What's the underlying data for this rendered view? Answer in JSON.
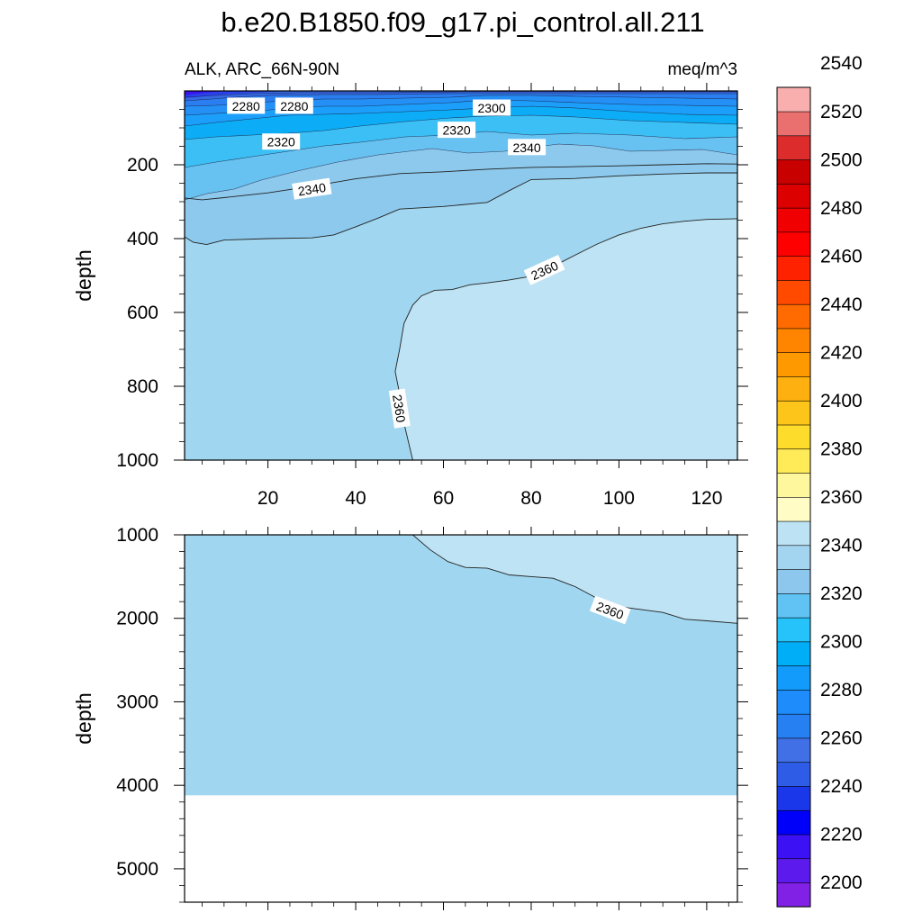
{
  "title": "b.e20.B1850.f09_g17.pi_control.all.211",
  "subtitle_left": "ALK, ARC_66N-90N",
  "subtitle_right": "meq/m^3",
  "chart_data": [
    {
      "type": "contour",
      "panel": "upper",
      "ylabel": "depth",
      "xlim": [
        1,
        127
      ],
      "ylim": [
        1000,
        0
      ],
      "x_ticks": [
        20,
        40,
        60,
        80,
        100,
        120
      ],
      "y_ticks": [
        200,
        400,
        600,
        800,
        1000
      ],
      "contours": [
        {
          "level": 2340,
          "points": [
            [
              1,
              290
            ],
            [
              5,
              295
            ],
            [
              10,
              289
            ],
            [
              20,
              276
            ],
            [
              30,
              258
            ],
            [
              40,
              238
            ],
            [
              50,
              224
            ],
            [
              60,
              219
            ],
            [
              70,
              212
            ],
            [
              80,
              207
            ],
            [
              90,
              205
            ],
            [
              100,
              203
            ],
            [
              110,
              200
            ],
            [
              120,
              197
            ],
            [
              127,
              198
            ]
          ]
        },
        {
          "level": 2350,
          "points": [
            [
              1,
              395
            ],
            [
              3,
              410
            ],
            [
              6,
              416
            ],
            [
              10,
              404
            ],
            [
              20,
              400
            ],
            [
              30,
              398
            ],
            [
              35,
              390
            ],
            [
              40,
              368
            ],
            [
              45,
              345
            ],
            [
              50,
              320
            ],
            [
              60,
              313
            ],
            [
              70,
              302
            ],
            [
              75,
              270
            ],
            [
              80,
              240
            ],
            [
              90,
              237
            ],
            [
              100,
              230
            ],
            [
              110,
              225
            ],
            [
              120,
              222
            ],
            [
              127,
              222
            ]
          ]
        },
        {
          "level": 2360,
          "points": [
            [
              53,
              1000
            ],
            [
              51,
              900
            ],
            [
              50,
              820
            ],
            [
              49,
              760
            ],
            [
              50,
              700
            ],
            [
              51,
              630
            ],
            [
              53,
              580
            ],
            [
              55,
              555
            ],
            [
              58,
              540
            ],
            [
              62,
              538
            ],
            [
              66,
              525
            ],
            [
              70,
              520
            ],
            [
              75,
              512
            ],
            [
              80,
              502
            ],
            [
              85,
              475
            ],
            [
              90,
              445
            ],
            [
              95,
              415
            ],
            [
              100,
              390
            ],
            [
              105,
              372
            ],
            [
              110,
              360
            ],
            [
              115,
              353
            ],
            [
              120,
              348
            ],
            [
              127,
              346
            ]
          ]
        }
      ],
      "contour_labels": [
        {
          "value": "2280",
          "x": 15,
          "y": 40
        },
        {
          "value": "2280",
          "x": 26,
          "y": 40
        },
        {
          "value": "2300",
          "x": 71,
          "y": 45
        },
        {
          "value": "2320",
          "x": 23,
          "y": 137
        },
        {
          "value": "2320",
          "x": 63,
          "y": 105
        },
        {
          "value": "2340",
          "x": 79,
          "y": 152
        },
        {
          "value": "2340",
          "x": 30,
          "y": 265
        },
        {
          "value": "2360",
          "x": 83,
          "y": 485
        },
        {
          "value": "2360",
          "x": 50,
          "y": 860
        }
      ]
    },
    {
      "type": "contour",
      "panel": "lower",
      "ylabel": "depth",
      "xlim": [
        1,
        127
      ],
      "ylim": [
        5400,
        1000
      ],
      "y_ticks": [
        1000,
        2000,
        3000,
        4000,
        5000
      ],
      "seafloor_depth": 4120,
      "contours": [
        {
          "level": 2360,
          "points": [
            [
              53,
              1000
            ],
            [
              57,
              1180
            ],
            [
              61,
              1320
            ],
            [
              65,
              1390
            ],
            [
              70,
              1400
            ],
            [
              75,
              1480
            ],
            [
              80,
              1500
            ],
            [
              85,
              1520
            ],
            [
              90,
              1620
            ],
            [
              95,
              1760
            ],
            [
              100,
              1860
            ],
            [
              110,
              1930
            ],
            [
              115,
              2010
            ],
            [
              120,
              2030
            ],
            [
              127,
              2060
            ]
          ]
        }
      ],
      "contour_labels": [
        {
          "value": "2360",
          "x": 98,
          "y": 1900
        }
      ]
    }
  ],
  "colorbar": {
    "labels": [
      "2200",
      "2220",
      "2240",
      "2260",
      "2280",
      "2300",
      "2320",
      "2340",
      "2360",
      "2380",
      "2400",
      "2420",
      "2440",
      "2460",
      "2480",
      "2500",
      "2520",
      "2540"
    ],
    "colors": [
      "#8121e6",
      "#5d1aed",
      "#3c11f3",
      "#0000fa",
      "#1a37ea",
      "#2f5ce6",
      "#4170e6",
      "#2780f2",
      "#1e8cfa",
      "#129bfb",
      "#00adf7",
      "#25c3fa",
      "#60c3f4",
      "#8ec7ed",
      "#a3d4f0",
      "#bde2f3",
      "#fffcc6",
      "#fff79d",
      "#ffeb57",
      "#fedc2c",
      "#fdc51a",
      "#fdb010",
      "#fe9a00",
      "#ff8500",
      "#ff6b00",
      "#ff4a00",
      "#ff2200",
      "#ff0000",
      "#f00000",
      "#dc0000",
      "#c80000",
      "#dc2c2c",
      "#ea7070",
      "#faafaf"
    ]
  }
}
